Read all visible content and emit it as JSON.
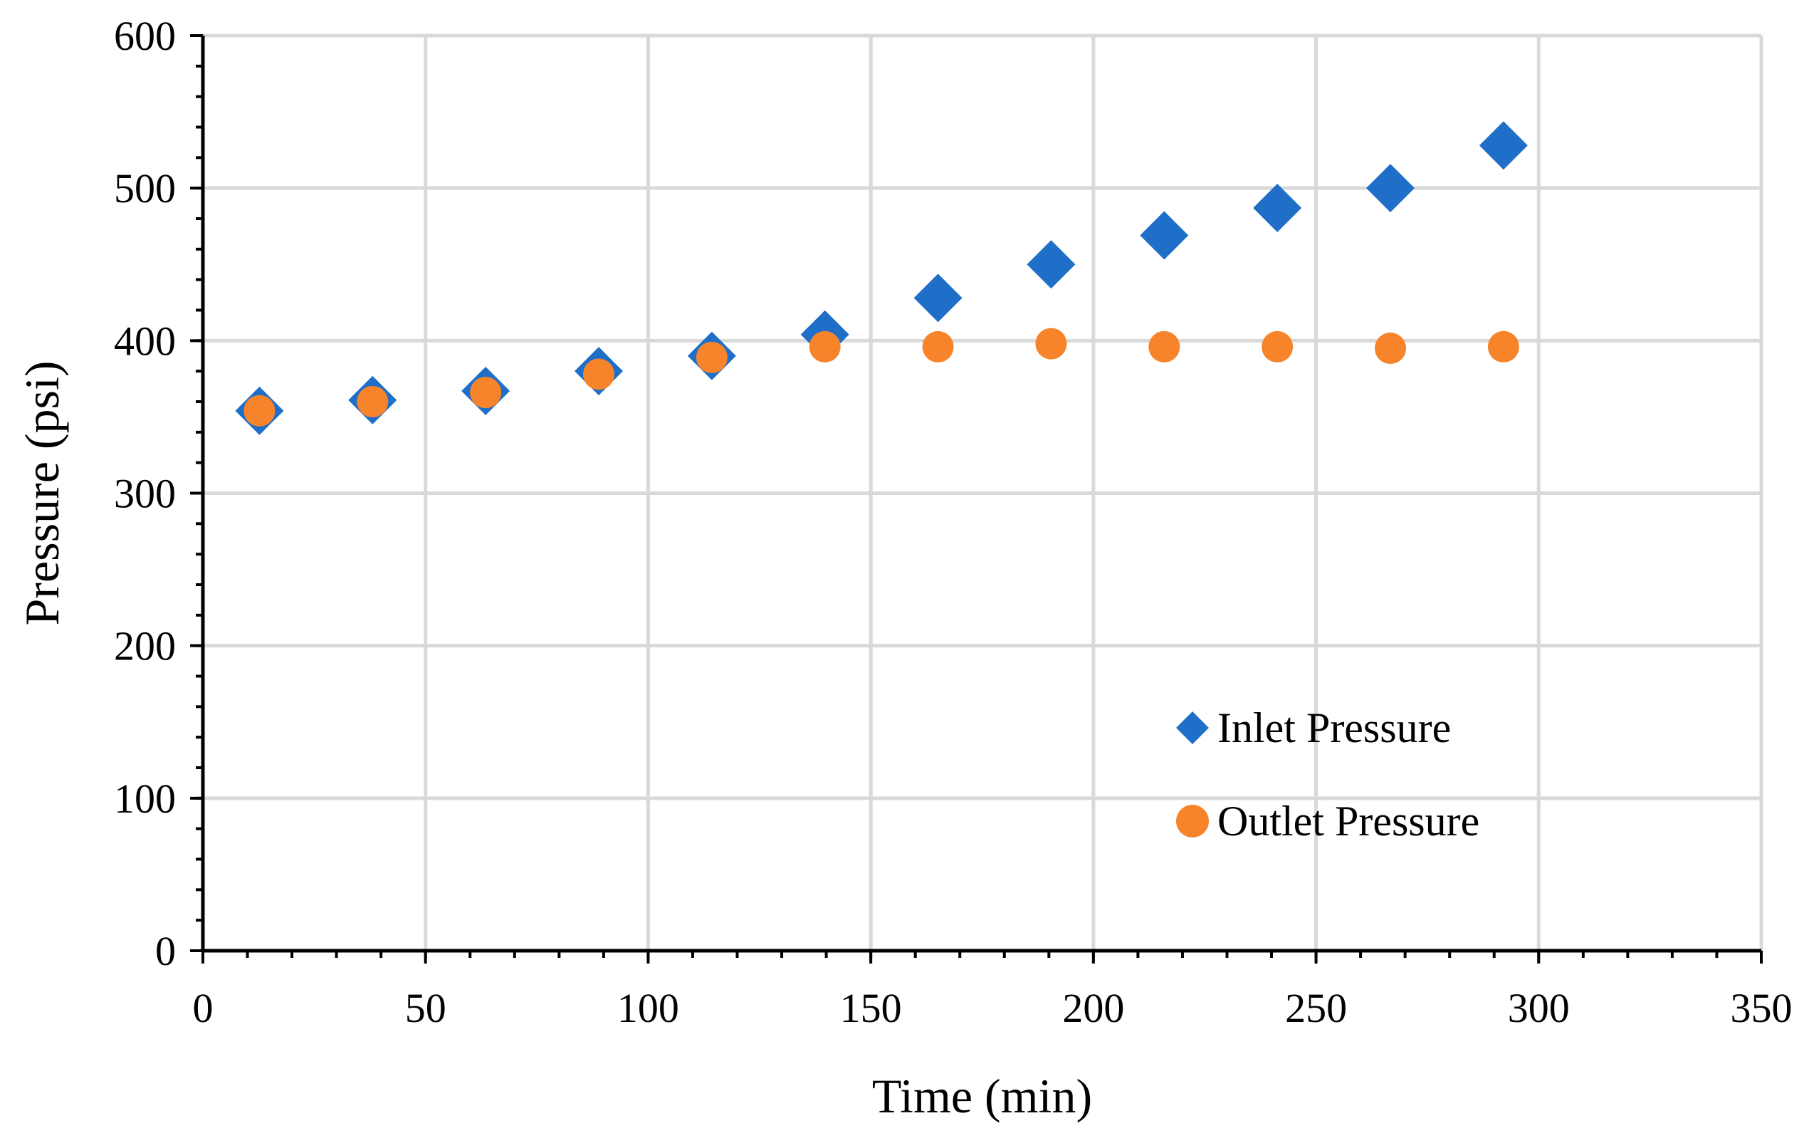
{
  "chart_data": {
    "type": "scatter",
    "title": "",
    "xlabel": "Time (min)",
    "ylabel": "Pressure (psi)",
    "xlim": [
      0,
      350
    ],
    "ylim": [
      0,
      600
    ],
    "xticks": [
      0,
      50,
      100,
      150,
      200,
      250,
      300,
      350
    ],
    "yticks": [
      0,
      100,
      200,
      300,
      400,
      500,
      600
    ],
    "grid": true,
    "legend_position": "bottom-right",
    "series": [
      {
        "name": "Inlet Pressure",
        "marker": "diamond",
        "color": "#1f6fc8",
        "x": [
          12.7,
          38.1,
          63.5,
          88.9,
          114.3,
          139.7,
          165.1,
          190.5,
          215.9,
          241.3,
          266.7,
          292.1
        ],
        "y": [
          354,
          361,
          367,
          380,
          390,
          404,
          428,
          450,
          469,
          487,
          500,
          528
        ]
      },
      {
        "name": "Outlet Pressure",
        "marker": "circle",
        "color": "#f7842b",
        "x": [
          12.7,
          38.1,
          63.5,
          88.9,
          114.3,
          139.7,
          165.1,
          190.5,
          215.9,
          241.3,
          266.7,
          292.1
        ],
        "y": [
          354,
          360,
          366,
          378,
          389,
          396,
          396,
          398,
          396,
          396,
          395,
          396
        ]
      }
    ]
  }
}
